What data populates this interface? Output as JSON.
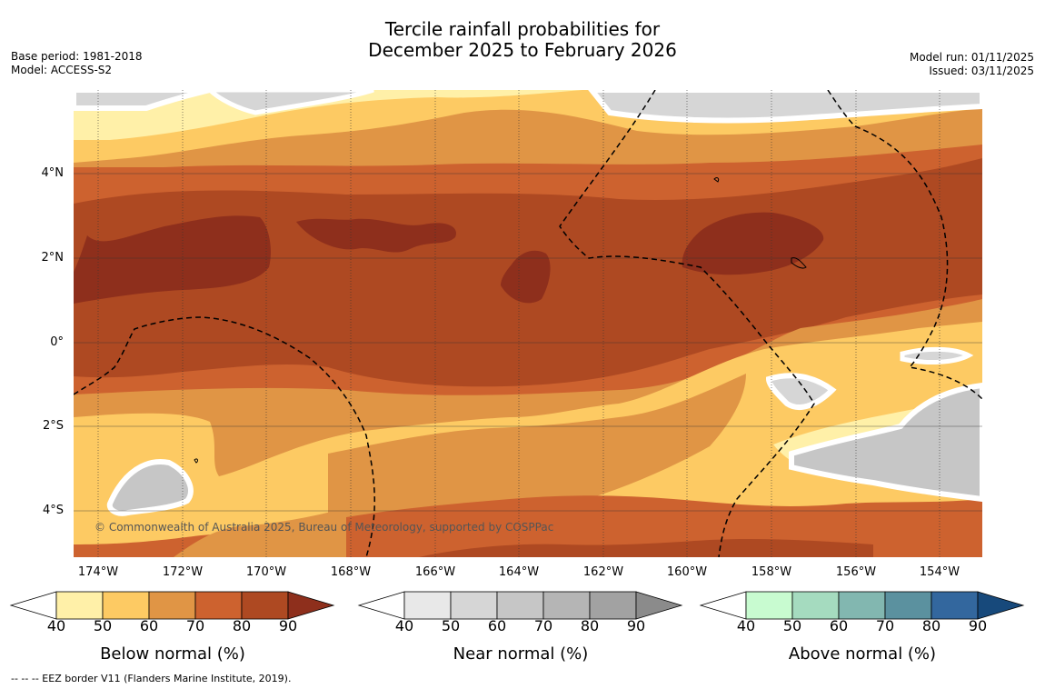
{
  "title_line1": "Tercile rainfall probabilities for",
  "title_line2": "December 2025 to February 2026",
  "base_period": "Base period: 1981-2018",
  "model": "Model: ACCESS-S2",
  "model_run": "Model run: 01/11/2025",
  "issued": "Issued: 03/11/2025",
  "copyright": "© Commonwealth of Australia 2025, Bureau of Meteorology, supported by COSPPac",
  "footnote": "--  --  -- EEZ border V11 (Flanders Marine Institute, 2019).",
  "lon_ticks": [
    "174°W",
    "172°W",
    "170°W",
    "168°W",
    "166°W",
    "164°W",
    "162°W",
    "160°W",
    "158°W",
    "156°W",
    "154°W"
  ],
  "lat_ticks": [
    "4°N",
    "2°N",
    "0°",
    "2°S",
    "4°S"
  ],
  "colorbars": [
    {
      "title": "Below normal (%)",
      "labels": [
        "40",
        "50",
        "60",
        "70",
        "80",
        "90"
      ],
      "colors": [
        "#fff0a8",
        "#fdca63",
        "#e09545",
        "#cd622f",
        "#ae4922",
        "#8e2f1c"
      ]
    },
    {
      "title": "Near normal (%)",
      "labels": [
        "40",
        "50",
        "60",
        "70",
        "80",
        "90"
      ],
      "colors": [
        "#e8e8e8",
        "#d6d6d6",
        "#c6c6c6",
        "#b5b5b5",
        "#a2a2a2",
        "#8b8b8b"
      ]
    },
    {
      "title": "Above normal (%)",
      "labels": [
        "40",
        "50",
        "60",
        "70",
        "80",
        "90"
      ],
      "colors": [
        "#c8fbd0",
        "#a5dbbf",
        "#82b7b0",
        "#5b919f",
        "#33679e",
        "#17497b"
      ]
    }
  ],
  "colors": {
    "below_40_50": "#fff0a8",
    "below_50_60": "#fdca63",
    "below_60_70": "#e09545",
    "below_70_80": "#cd622f",
    "below_80_90": "#ae4922",
    "below_90": "#8e2f1c",
    "near_40_50": "#e8e8e8",
    "near_50_60": "#d6d6d6",
    "near_60_70": "#c6c6c6"
  }
}
